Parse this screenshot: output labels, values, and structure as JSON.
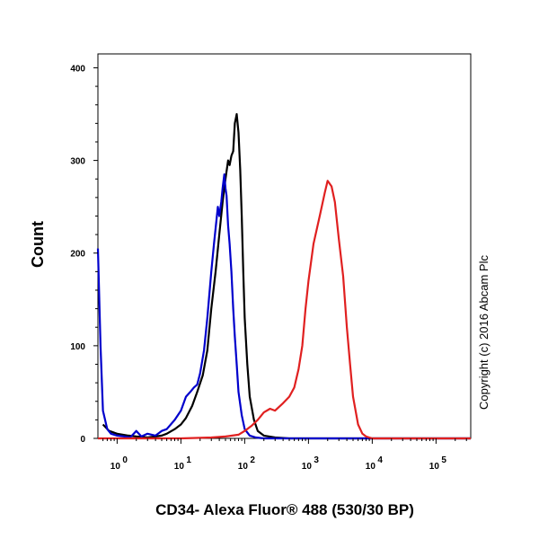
{
  "chart_data": {
    "type": "line",
    "xlabel": "CD34- Alexa Fluor® 488 (530/30 BP)",
    "ylabel": "Count",
    "x_scale": "log",
    "xlim": [
      0.5,
      350000
    ],
    "ylim": [
      0,
      415
    ],
    "x_ticks": [
      {
        "value": 1,
        "base": "10",
        "exp": "0"
      },
      {
        "value": 10,
        "base": "10",
        "exp": "1"
      },
      {
        "value": 100,
        "base": "10",
        "exp": "2"
      },
      {
        "value": 1000,
        "base": "10",
        "exp": "3"
      },
      {
        "value": 10000,
        "base": "10",
        "exp": "4"
      },
      {
        "value": 100000,
        "base": "10",
        "exp": "5"
      }
    ],
    "y_ticks": [
      {
        "value": 0,
        "label": "0"
      },
      {
        "value": 100,
        "label": "100"
      },
      {
        "value": 200,
        "label": "200"
      },
      {
        "value": 300,
        "label": "300"
      },
      {
        "value": 400,
        "label": "400"
      }
    ],
    "series": [
      {
        "color": "#000000",
        "x": [
          0.6,
          0.75,
          1,
          1.5,
          2,
          3,
          4,
          5,
          6,
          8,
          10,
          12,
          15,
          18,
          22,
          26,
          30,
          35,
          40,
          45,
          50,
          55,
          58,
          62,
          66,
          70,
          75,
          80,
          85,
          90,
          95,
          100,
          110,
          120,
          140,
          160,
          200,
          300,
          500,
          1000,
          10000,
          100000,
          350000
        ],
        "y": [
          15,
          8,
          5,
          3,
          2,
          1,
          2,
          3,
          5,
          10,
          15,
          22,
          35,
          50,
          68,
          95,
          140,
          180,
          220,
          255,
          280,
          300,
          295,
          305,
          310,
          340,
          350,
          330,
          290,
          240,
          180,
          130,
          80,
          45,
          20,
          8,
          3,
          1,
          0,
          0,
          0,
          0,
          0
        ]
      },
      {
        "color": "#0000cc",
        "x": [
          0.5,
          0.55,
          0.6,
          0.7,
          0.8,
          1,
          1.3,
          1.6,
          2,
          2.4,
          3,
          4,
          5,
          6,
          8,
          10,
          12,
          14,
          16,
          18,
          20,
          23,
          26,
          30,
          33,
          36,
          38,
          40,
          43,
          45,
          48,
          50,
          52,
          55,
          58,
          62,
          66,
          70,
          75,
          80,
          90,
          100,
          120,
          150,
          200,
          300,
          500,
          1000,
          10000,
          100000,
          350000
        ],
        "y": [
          205,
          100,
          30,
          10,
          5,
          3,
          2,
          1,
          8,
          2,
          5,
          3,
          8,
          10,
          20,
          30,
          45,
          50,
          55,
          58,
          70,
          95,
          130,
          180,
          210,
          235,
          250,
          240,
          255,
          270,
          285,
          270,
          262,
          230,
          210,
          180,
          140,
          110,
          80,
          50,
          25,
          10,
          3,
          1,
          0,
          0,
          0,
          0,
          0,
          0,
          0
        ]
      },
      {
        "color": "#e02020",
        "x": [
          0.5,
          1,
          10,
          30,
          50,
          80,
          100,
          130,
          160,
          200,
          250,
          300,
          400,
          500,
          600,
          700,
          800,
          900,
          1000,
          1200,
          1500,
          1800,
          2000,
          2300,
          2600,
          3000,
          3500,
          4000,
          4500,
          5000,
          6000,
          7000,
          8000,
          10000,
          100000,
          350000
        ],
        "y": [
          0,
          0,
          0,
          1,
          2,
          4,
          8,
          14,
          20,
          28,
          32,
          30,
          38,
          45,
          55,
          75,
          100,
          140,
          170,
          210,
          240,
          265,
          278,
          272,
          255,
          215,
          175,
          120,
          80,
          45,
          15,
          5,
          2,
          0,
          0,
          0
        ]
      }
    ]
  },
  "copyright": "Copyright (c) 2016 Abcam Plc"
}
